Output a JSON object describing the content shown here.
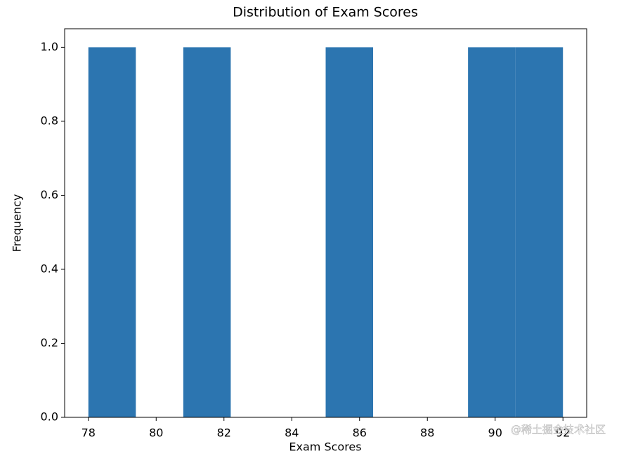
{
  "chart_data": {
    "type": "histogram",
    "title": "Distribution of Exam Scores",
    "x_label": "Exam Scores",
    "y_label": "Frequency",
    "bins": [
      78,
      79.4,
      80.8,
      82.2,
      83.6,
      85,
      86.4,
      87.8,
      89.2,
      90.6,
      92
    ],
    "counts": [
      1,
      0,
      1,
      0,
      0,
      1,
      0,
      0,
      1,
      1
    ],
    "color": "#2c75b0",
    "xlim": [
      77.3,
      92.7
    ],
    "xticks": [
      78,
      80,
      82,
      84,
      86,
      88,
      90,
      92
    ],
    "ylim": [
      0,
      1.05
    ],
    "yticks": [
      {
        "value": 0,
        "label": "0.0"
      },
      {
        "value": 0.2,
        "label": "0.2"
      },
      {
        "value": 0.4,
        "label": "0.4"
      },
      {
        "value": 0.6,
        "label": "0.6"
      },
      {
        "value": 0.8,
        "label": "0.8"
      },
      {
        "value": 1,
        "label": "1.0"
      }
    ],
    "grid": false
  },
  "watermark": "@稀土掘金技术社区"
}
